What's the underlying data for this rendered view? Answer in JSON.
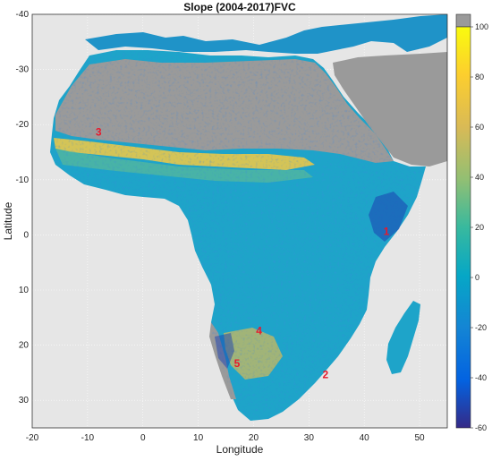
{
  "title": "Slope (2004-2017)FVC",
  "x_axis": {
    "label": "Longitude",
    "ticks": [
      "-20",
      "-10",
      "0",
      "10",
      "20",
      "30",
      "40",
      "50"
    ],
    "range": [
      -20,
      55
    ]
  },
  "y_axis": {
    "label": "Latitude",
    "ticks": [
      "-40",
      "-30",
      "-20",
      "-10",
      "0",
      "10",
      "20",
      "30"
    ],
    "range": [
      -40,
      35
    ],
    "direction": "down"
  },
  "colorbar": {
    "ticks": [
      "100",
      "80",
      "60",
      "40",
      "20",
      "0",
      "-20",
      "-40",
      "-60"
    ],
    "range": [
      -60,
      100
    ],
    "nodata_color": "#9a9a9a",
    "colormap": "parula"
  },
  "markers": [
    {
      "label": "1",
      "lon": 44,
      "lat": 0
    },
    {
      "label": "2",
      "lon": 33,
      "lat": 26
    },
    {
      "label": "3",
      "lon": -8,
      "lat": -18
    },
    {
      "label": "4",
      "lon": 21,
      "lat": 18
    },
    {
      "label": "5",
      "lon": 17,
      "lat": 24
    }
  ],
  "colors": {
    "background": "#e6e6e6",
    "grid": "#ffffff",
    "land_base": "#1ea4c9",
    "nodata": "#9a9a9a",
    "marker_text": "#e8192c"
  }
}
